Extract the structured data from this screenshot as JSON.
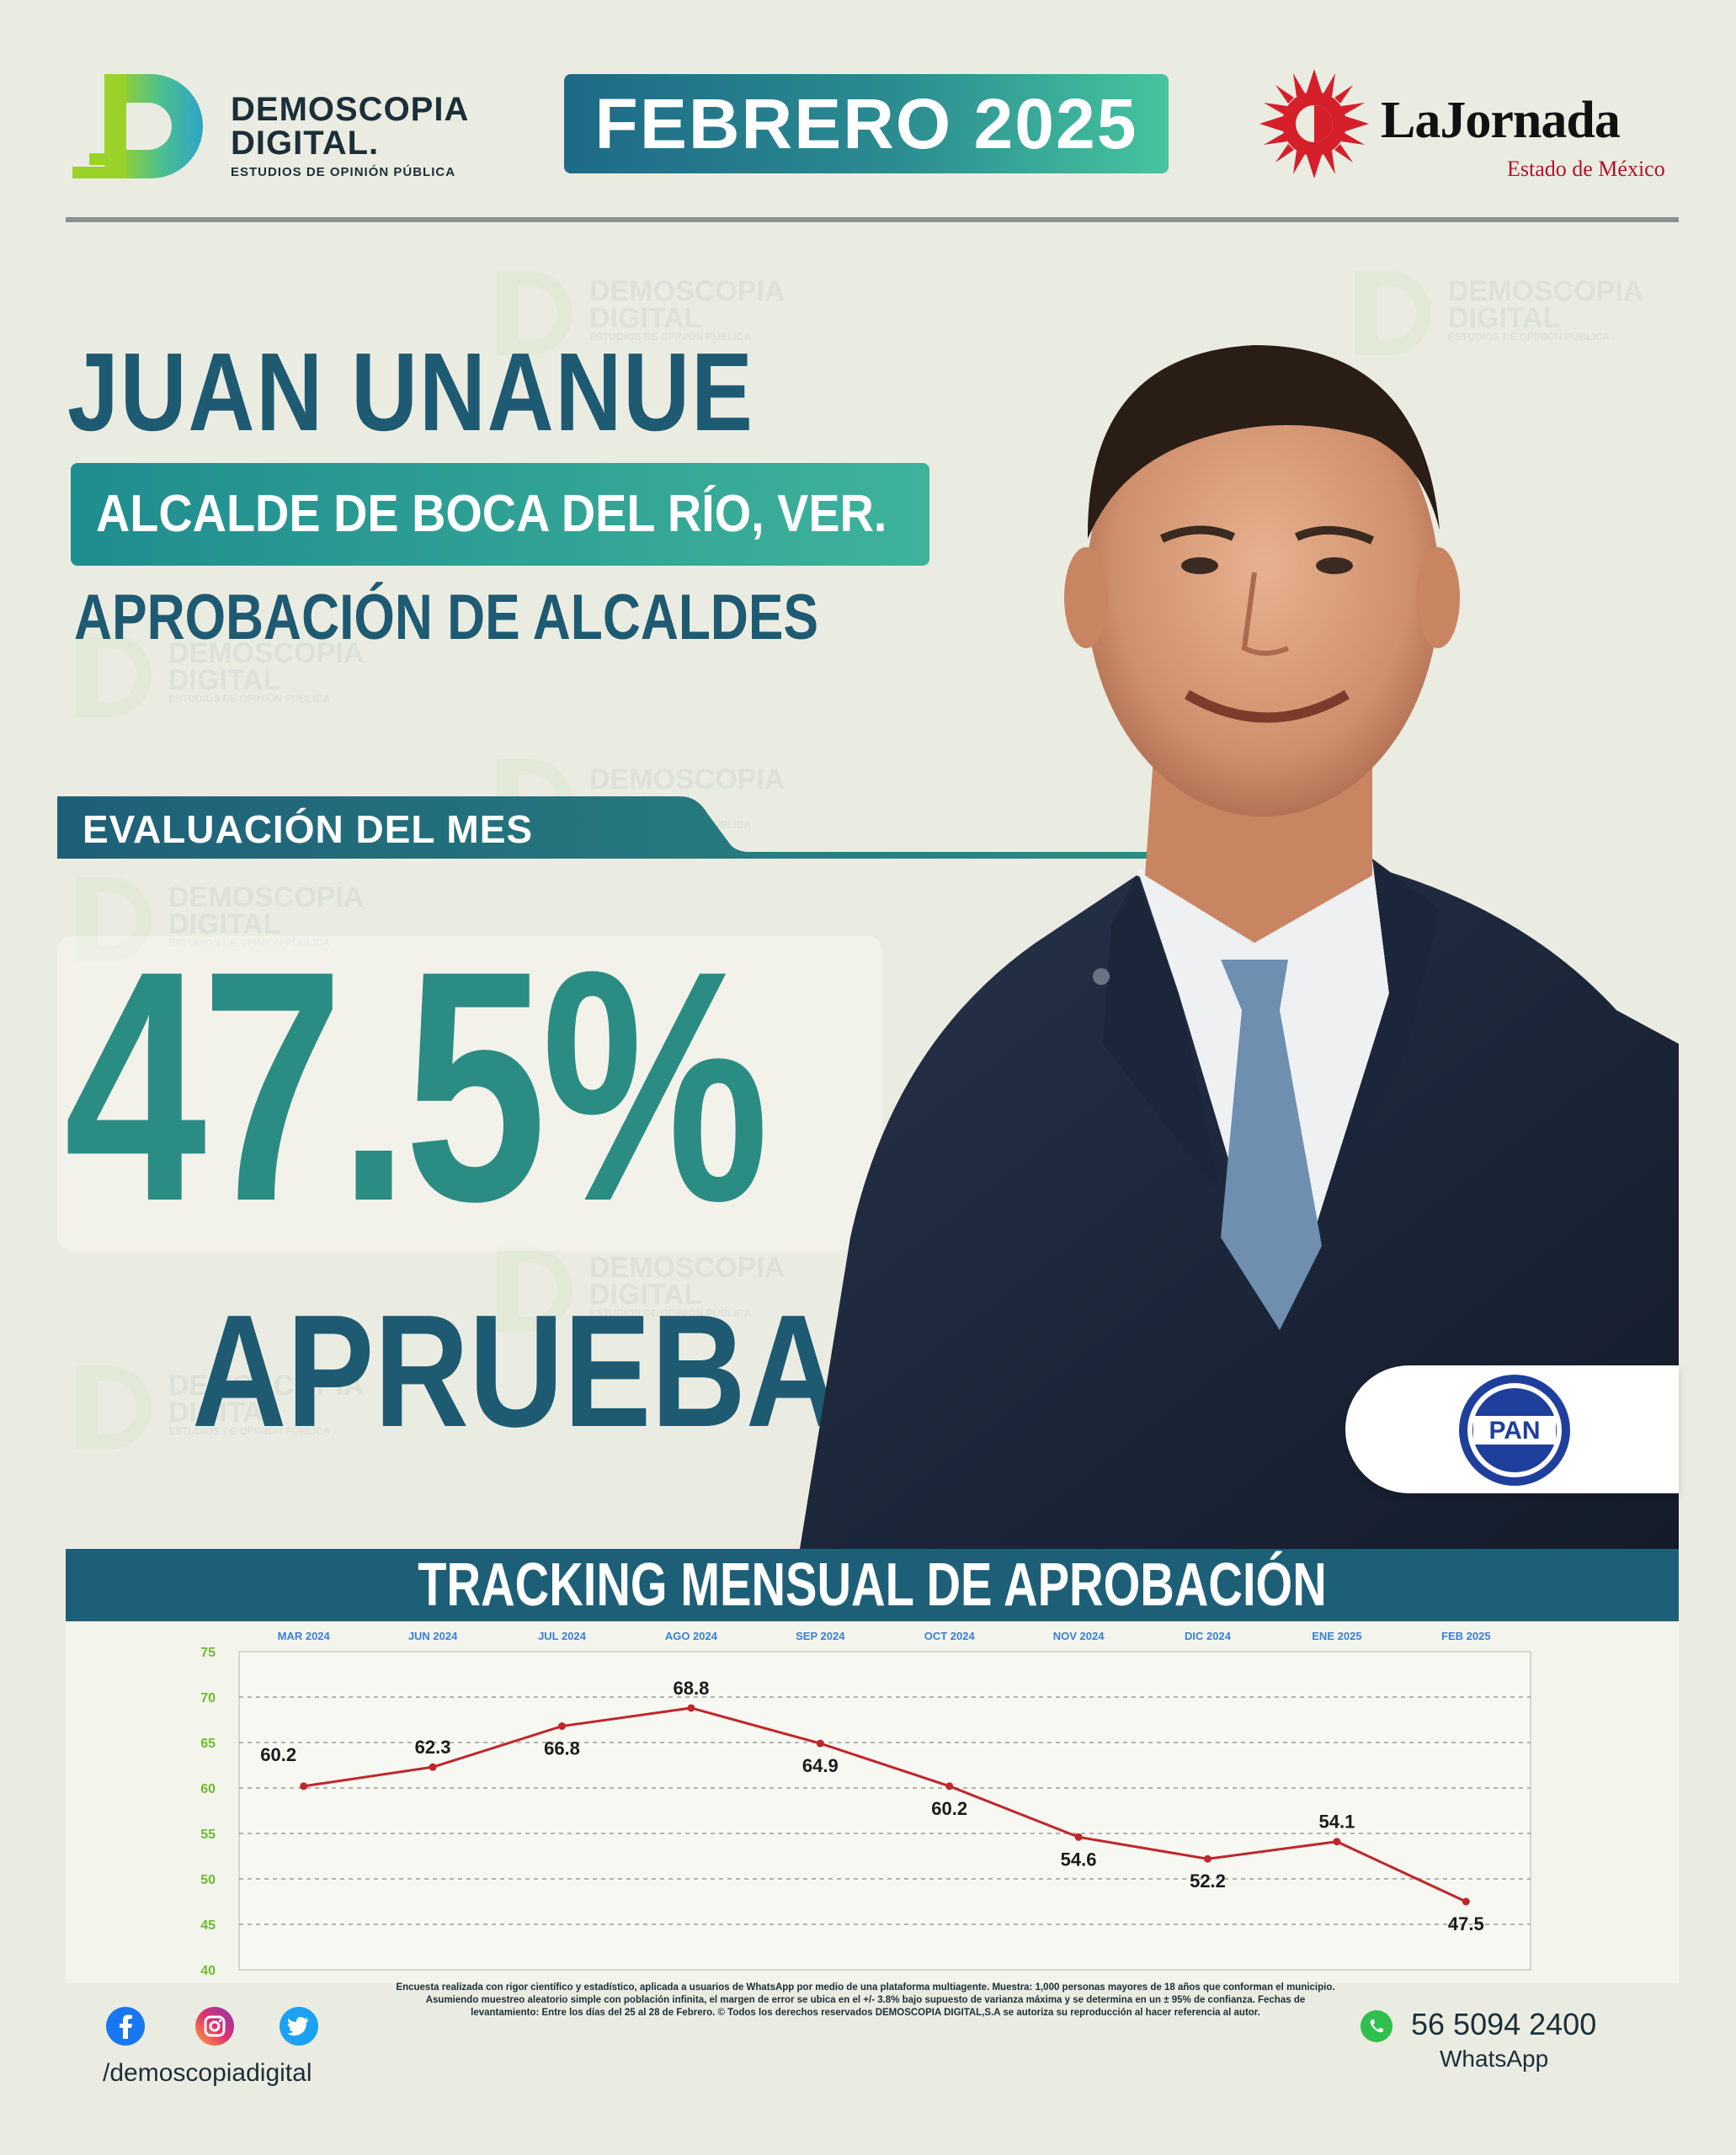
{
  "header": {
    "pollster_line1": "DEMOSCOPIA",
    "pollster_line2": "DIGITAL.",
    "pollster_tagline": "ESTUDIOS DE OPINIÓN PÚBLICA",
    "month": "FEBRERO 2025",
    "media_name": "LaJornada",
    "media_region": "Estado de México"
  },
  "subject": {
    "name": "JUAN UNANUE",
    "role": "ALCALDE DE BOCA DEL RÍO, VER.",
    "category": "APROBACIÓN DE ALCALDES",
    "eval_label": "EVALUACIÓN DEL MES",
    "approval_pct": "47.5%",
    "approval_word": "APRUEBA",
    "party": "PAN"
  },
  "colors": {
    "primary": "#1e5a72",
    "teal": "#2a8c83",
    "line": "#c0262b",
    "axis_green": "#6dbb2d",
    "month_blue": "#3a7fd5"
  },
  "chart_data": {
    "type": "line",
    "title": "TRACKING MENSUAL DE APROBACIÓN",
    "categories": [
      "MAR 2024",
      "JUN 2024",
      "JUL 2024",
      "AGO 2024",
      "SEP 2024",
      "OCT 2024",
      "NOV 2024",
      "DIC 2024",
      "ENE 2025",
      "FEB 2025"
    ],
    "series": [
      {
        "values": [
          60.2,
          62.3,
          66.8,
          68.8,
          64.9,
          60.2,
          54.6,
          52.2,
          54.1,
          47.5
        ]
      }
    ],
    "ylim": [
      40,
      75
    ],
    "yticks": [
      "40",
      "45",
      "50",
      "55",
      "60",
      "65",
      "70",
      "75"
    ],
    "grid": true
  },
  "footer": {
    "social_handle": "/demoscopiadigital",
    "disclaimer": "Encuesta realizada con rigor científico y estadístico, aplicada a usuarios de WhatsApp por medio de una plataforma multiagente. Muestra: 1,000 personas mayores de 18 años que conforman el municipio. Asumiendo muestreo aleatorio simple con población infinita, el margen de error se ubica en el +/- 3.8% bajo supuesto de varianza máxima y se determina en un ± 95% de confianza. Fechas de levantamiento: Entre los días del 25 al 28 de Febrero. © Todos los derechos reservados DEMOSCOPIA DIGITAL,S.A se autoriza su reproducción al hacer referencia al autor.",
    "whatsapp_number": "56 5094 2400",
    "whatsapp_label": "WhatsApp"
  }
}
